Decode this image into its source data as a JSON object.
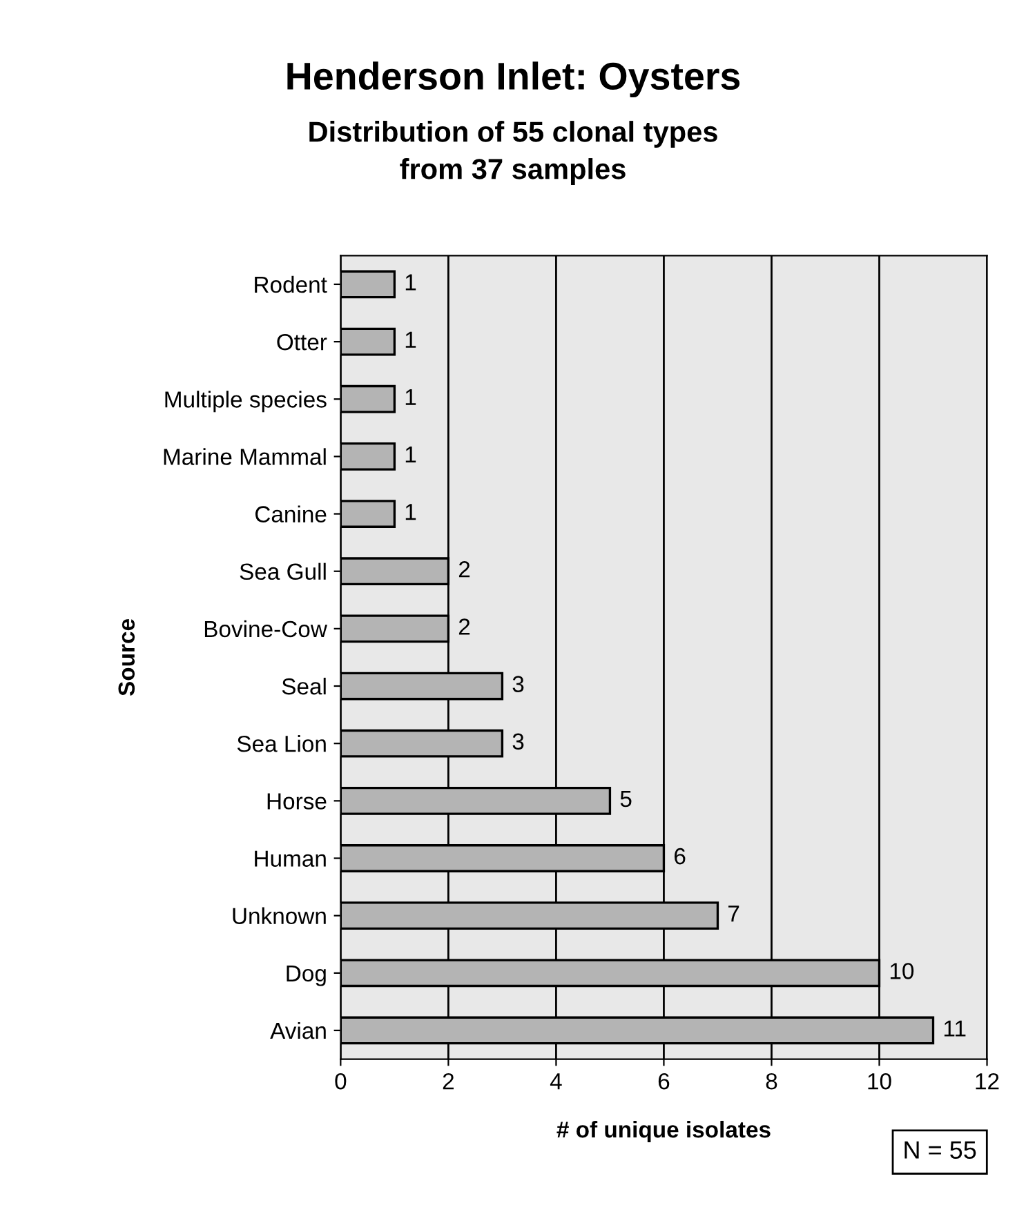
{
  "chart_data": {
    "type": "bar",
    "orientation": "horizontal",
    "title": "Henderson Inlet: Oysters",
    "subtitle": "Distribution of 55 clonal types\nfrom 37 samples",
    "xlabel": "# of unique isolates",
    "ylabel": "Source",
    "categories": [
      "Rodent",
      "Otter",
      "Multiple species",
      "Marine Mammal",
      "Canine",
      "Sea Gull",
      "Bovine-Cow",
      "Seal",
      "Sea Lion",
      "Horse",
      "Human",
      "Unknown",
      "Dog",
      "Avian"
    ],
    "values": [
      1,
      1,
      1,
      1,
      1,
      2,
      2,
      3,
      3,
      5,
      6,
      7,
      10,
      11
    ],
    "color": "#b4b4b4",
    "xlim": [
      0,
      12
    ],
    "xticks": [
      0,
      2,
      4,
      6,
      8,
      10,
      12
    ],
    "grid": "x",
    "data_labels": true,
    "legend": false,
    "annotations": [
      "N = 55"
    ]
  }
}
